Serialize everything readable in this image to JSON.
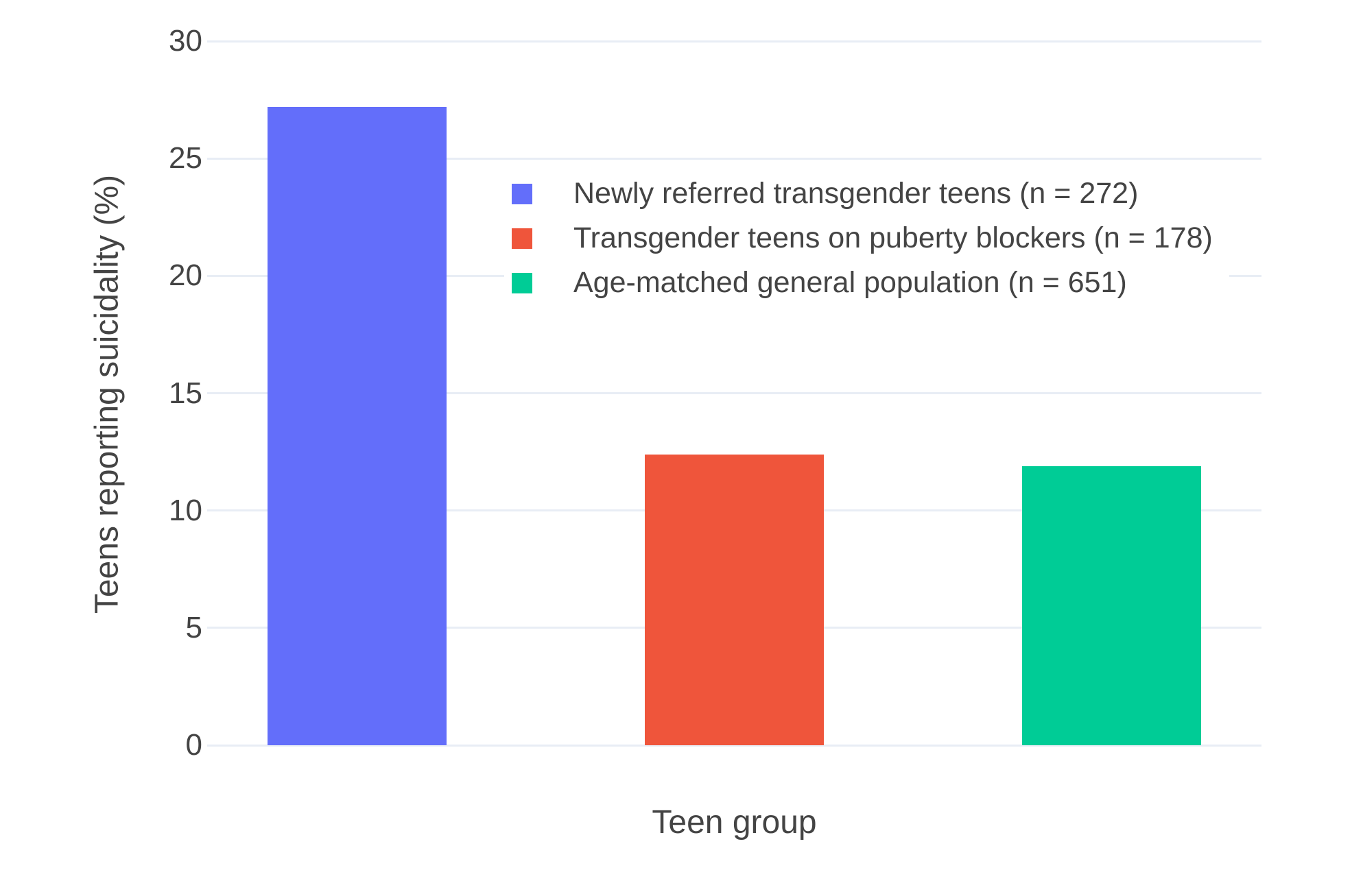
{
  "chart_data": {
    "type": "bar",
    "categories": [
      "Newly referred transgender teens (n = 272)",
      "Transgender teens on puberty blockers (n = 178)",
      "Age-matched general population (n = 651)"
    ],
    "values": [
      27.2,
      12.4,
      11.9
    ],
    "bar_colors": [
      "#636EFA",
      "#EF553B",
      "#00CC96"
    ],
    "title": "",
    "xlabel": "Teen group",
    "ylabel": "Teens reporting suicidality (%)",
    "ylim": [
      0,
      30
    ],
    "yticks": [
      0,
      5,
      10,
      15,
      20,
      25,
      30
    ],
    "grid": true,
    "gridcolor": "#E8EDF5",
    "plot_bgcolor": "#ffffff",
    "text_color": "#444444",
    "legend_position": "inside-upper-center",
    "legend": [
      {
        "label": "Newly referred transgender teens (n = 272)",
        "color": "#636EFA"
      },
      {
        "label": "Transgender teens on puberty blockers (n = 178)",
        "color": "#EF553B"
      },
      {
        "label": "Age-matched general population (n = 651)",
        "color": "#00CC96"
      }
    ]
  }
}
